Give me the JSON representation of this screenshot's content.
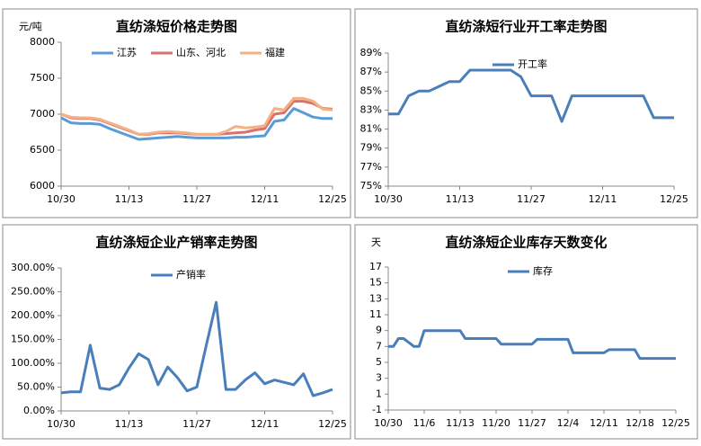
{
  "chart_data": [
    {
      "type": "line",
      "title": "直纺涤短价格走势图",
      "y_label": "元/吨",
      "categories": [
        "10/30",
        null,
        null,
        null,
        null,
        null,
        null,
        "11/13",
        null,
        null,
        null,
        null,
        null,
        null,
        "11/27",
        null,
        null,
        null,
        null,
        null,
        null,
        "12/11",
        null,
        null,
        null,
        null,
        null,
        null,
        "12/25"
      ],
      "series": [
        {
          "name": "江苏",
          "color": "#5b9bd5",
          "values": [
            6950,
            6880,
            6870,
            6870,
            6860,
            6800,
            6750,
            6700,
            6650,
            6660,
            6670,
            6680,
            6690,
            6680,
            6670,
            6670,
            6670,
            6670,
            6680,
            6680,
            6690,
            6700,
            6900,
            6920,
            7080,
            7020,
            6960,
            6940,
            6940
          ]
        },
        {
          "name": "山东、河北",
          "color": "#d9716f",
          "values": [
            7000,
            6950,
            6940,
            6940,
            6920,
            6870,
            6820,
            6770,
            6720,
            6720,
            6740,
            6740,
            6740,
            6730,
            6720,
            6720,
            6720,
            6730,
            6740,
            6750,
            6780,
            6800,
            7000,
            7020,
            7180,
            7180,
            7150,
            7080,
            7070
          ]
        },
        {
          "name": "福建",
          "color": "#f4b183",
          "values": [
            7000,
            6960,
            6950,
            6950,
            6930,
            6880,
            6830,
            6780,
            6720,
            6730,
            6750,
            6760,
            6750,
            6740,
            6720,
            6720,
            6720,
            6760,
            6830,
            6810,
            6820,
            6840,
            7080,
            7060,
            7220,
            7220,
            7180,
            7070,
            7060
          ]
        }
      ],
      "ylim": [
        6000,
        8000
      ],
      "yticks": [
        6000,
        6500,
        7000,
        7500,
        8000
      ],
      "legend": "top"
    },
    {
      "type": "line",
      "title": "直纺涤短行业开工率走势图",
      "categories": [
        "10/30",
        null,
        null,
        null,
        null,
        null,
        null,
        "11/13",
        null,
        null,
        null,
        null,
        null,
        null,
        "11/27",
        null,
        null,
        null,
        null,
        null,
        null,
        "12/11",
        null,
        null,
        null,
        null,
        null,
        null,
        "12/25"
      ],
      "series": [
        {
          "name": "开工率",
          "color": "#4a7ebb",
          "values": [
            82.6,
            82.6,
            84.5,
            85,
            85,
            85.5,
            86,
            86,
            87.2,
            87.2,
            87.2,
            87.2,
            87.2,
            86.5,
            84.5,
            84.5,
            84.5,
            81.8,
            84.5,
            84.5,
            84.5,
            84.5,
            84.5,
            84.5,
            84.5,
            84.5,
            82.2,
            82.2,
            82.2
          ]
        }
      ],
      "ylim": [
        75,
        89
      ],
      "yticks": [
        {
          "value": 75,
          "label": "75%"
        },
        {
          "value": 77,
          "label": "77%"
        },
        {
          "value": 79,
          "label": "79%"
        },
        {
          "value": 81,
          "label": "81%"
        },
        {
          "value": 83,
          "label": "83%"
        },
        {
          "value": 85,
          "label": "85%"
        },
        {
          "value": 87,
          "label": "87%"
        },
        {
          "value": 89,
          "label": "89%"
        }
      ],
      "legend": "top"
    },
    {
      "type": "line",
      "title": "直纺涤短企业产销率走势图",
      "categories": [
        "10/30",
        null,
        null,
        null,
        null,
        null,
        null,
        "11/13",
        null,
        null,
        null,
        null,
        null,
        null,
        "11/27",
        null,
        null,
        null,
        null,
        null,
        null,
        "12/11",
        null,
        null,
        null,
        null,
        null,
        null,
        "12/25"
      ],
      "series": [
        {
          "name": "产销率",
          "color": "#4a7ebb",
          "values": [
            38,
            40,
            40,
            138,
            48,
            45,
            55,
            90,
            120,
            108,
            55,
            92,
            70,
            42,
            50,
            140,
            228,
            45,
            45,
            65,
            80,
            57,
            65,
            60,
            55,
            78,
            32,
            38,
            45
          ]
        }
      ],
      "ylim": [
        0,
        300
      ],
      "yticks": [
        {
          "value": 0,
          "label": "0.00%"
        },
        {
          "value": 50,
          "label": "50.00%"
        },
        {
          "value": 100,
          "label": "100.00%"
        },
        {
          "value": 150,
          "label": "150.00%"
        },
        {
          "value": 200,
          "label": "200.00%"
        },
        {
          "value": 250,
          "label": "250.00%"
        },
        {
          "value": 300,
          "label": "300.00%"
        }
      ],
      "legend": "top"
    },
    {
      "type": "line",
      "title": "直纺涤短企业库存天数变化",
      "y_label": "天",
      "categories": [
        "10/30",
        null,
        null,
        null,
        null,
        null,
        null,
        "11/6",
        null,
        null,
        null,
        null,
        null,
        null,
        "11/13",
        null,
        null,
        null,
        null,
        null,
        null,
        "11/20",
        null,
        null,
        null,
        null,
        null,
        null,
        "11/27",
        null,
        null,
        null,
        null,
        null,
        null,
        "12/4",
        null,
        null,
        null,
        null,
        null,
        null,
        "12/11",
        null,
        null,
        null,
        null,
        null,
        null,
        "12/18",
        null,
        null,
        null,
        null,
        null,
        null,
        "12/25"
      ],
      "series": [
        {
          "name": "库存",
          "color": "#4a7ebb",
          "values": [
            7,
            7,
            8,
            8,
            7.5,
            7,
            7,
            9,
            9,
            9,
            9,
            9,
            9,
            9,
            9,
            8,
            8,
            8,
            8,
            8,
            8,
            8,
            7.3,
            7.3,
            7.3,
            7.3,
            7.3,
            7.3,
            7.3,
            7.9,
            7.9,
            7.9,
            7.9,
            7.9,
            7.9,
            7.9,
            6.2,
            6.2,
            6.2,
            6.2,
            6.2,
            6.2,
            6.2,
            6.6,
            6.6,
            6.6,
            6.6,
            6.6,
            6.6,
            5.5,
            5.5,
            5.5,
            5.5,
            5.5,
            5.5,
            5.5,
            5.5
          ]
        }
      ],
      "ylim": [
        -1,
        17
      ],
      "yticks": [
        -1,
        1,
        3,
        5,
        7,
        9,
        11,
        13,
        15,
        17
      ],
      "legend": "top"
    }
  ]
}
